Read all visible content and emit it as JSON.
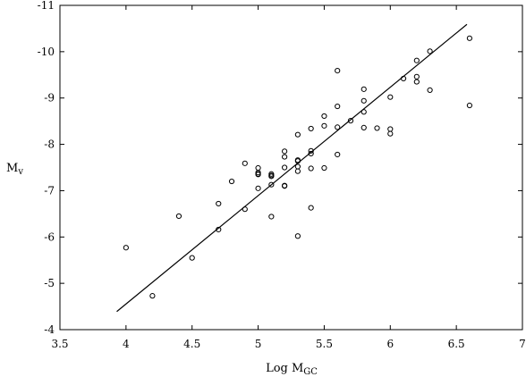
{
  "chart_data": {
    "type": "scatter",
    "title": "",
    "xlabel": {
      "main": "Log M",
      "sub": "GC"
    },
    "ylabel": {
      "main": "M",
      "sub": "v"
    },
    "xlim": [
      3.5,
      7
    ],
    "ylim": [
      -4,
      -11
    ],
    "y_inverted": true,
    "xticks": [
      3.5,
      4,
      4.5,
      5,
      5.5,
      6,
      6.5,
      7
    ],
    "xtick_labels": [
      "3.5",
      "4",
      "4.5",
      "5",
      "5.5",
      "6",
      "6.5",
      "7"
    ],
    "yticks": [
      -4,
      -5,
      -6,
      -7,
      -8,
      -9,
      -10,
      -11
    ],
    "ytick_labels": [
      "-4",
      "-5",
      "-6",
      "-7",
      "-8",
      "-9",
      "-10",
      "-11"
    ],
    "grid": false,
    "series": [
      {
        "kind": "points",
        "marker": "open-circle",
        "x": [
          4.0,
          4.2,
          4.4,
          4.5,
          4.7,
          4.7,
          4.8,
          4.9,
          4.9,
          5.0,
          5.0,
          5.0,
          5.0,
          5.0,
          5.1,
          5.1,
          5.1,
          5.1,
          5.1,
          5.2,
          5.2,
          5.2,
          5.2,
          5.2,
          5.3,
          5.3,
          5.3,
          5.3,
          5.3,
          5.3,
          5.4,
          5.4,
          5.4,
          5.4,
          5.4,
          5.5,
          5.5,
          5.5,
          5.6,
          5.6,
          5.6,
          5.6,
          5.7,
          5.8,
          5.8,
          5.8,
          5.8,
          5.9,
          6.0,
          6.0,
          6.0,
          6.1,
          6.2,
          6.2,
          6.2,
          6.3,
          6.3,
          6.6,
          6.6
        ],
        "y": [
          -5.77,
          -4.73,
          -6.45,
          -5.55,
          -6.72,
          -6.16,
          -7.2,
          -7.59,
          -6.6,
          -7.49,
          -7.39,
          -7.36,
          -7.35,
          -7.05,
          -7.36,
          -7.31,
          -7.13,
          -6.44,
          -7.33,
          -7.85,
          -7.73,
          -7.5,
          -7.11,
          -7.1,
          -8.21,
          -7.66,
          -7.64,
          -7.52,
          -7.42,
          -6.02,
          -8.34,
          -7.86,
          -7.8,
          -7.48,
          -6.63,
          -8.61,
          -8.4,
          -7.49,
          -9.59,
          -8.82,
          -8.37,
          -7.78,
          -8.51,
          -9.19,
          -8.94,
          -8.7,
          -8.36,
          -8.35,
          -9.02,
          -8.33,
          -8.23,
          -9.42,
          -9.81,
          -9.46,
          -9.35,
          -10.01,
          -9.17,
          -10.29,
          -8.84
        ]
      },
      {
        "kind": "fit-line",
        "x": [
          3.93,
          6.58
        ],
        "y": [
          -4.39,
          -10.59
        ]
      }
    ]
  }
}
